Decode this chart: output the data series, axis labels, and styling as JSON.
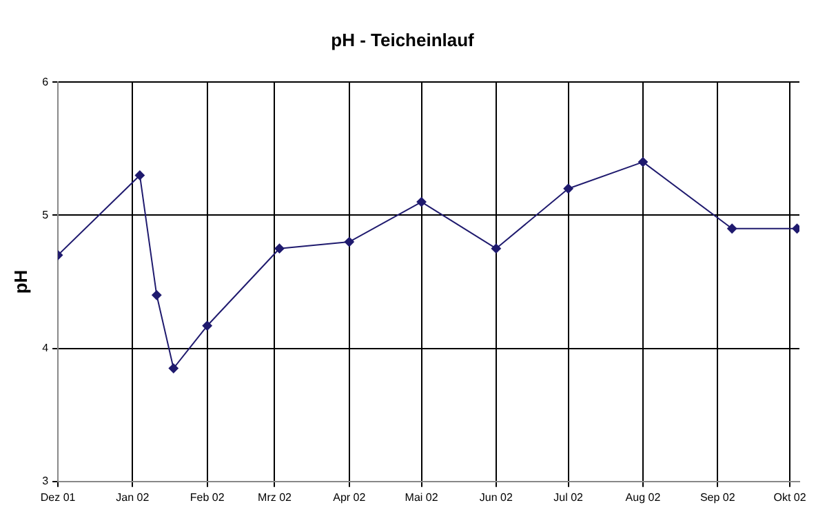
{
  "chart_data": {
    "type": "line",
    "title": "pH - Teicheinlauf",
    "ylabel": "pH",
    "x": [
      "2001-12-01",
      "2002-01-04",
      "2002-01-11",
      "2002-01-18",
      "2002-02-01",
      "2002-03-03",
      "2002-04-01",
      "2002-05-01",
      "2002-06-01",
      "2002-07-01",
      "2002-08-01",
      "2002-09-07",
      "2002-10-04"
    ],
    "series": [
      {
        "color": "#1f1a6e",
        "values": [
          4.7,
          5.3,
          4.4,
          3.85,
          4.17,
          4.75,
          4.8,
          5.1,
          4.75,
          5.2,
          5.4,
          4.9,
          4.9
        ]
      }
    ],
    "xlim": [
      "2001-12-01",
      "2002-10-05"
    ],
    "xticks": [
      {
        "value": "2001-12-01",
        "label": "Dez 01"
      },
      {
        "value": "2002-01-01",
        "label": "Jan 02"
      },
      {
        "value": "2002-02-01",
        "label": "Feb 02"
      },
      {
        "value": "2002-03-01",
        "label": "Mrz 02"
      },
      {
        "value": "2002-04-01",
        "label": "Apr 02"
      },
      {
        "value": "2002-05-01",
        "label": "Mai 02"
      },
      {
        "value": "2002-06-01",
        "label": "Jun 02"
      },
      {
        "value": "2002-07-01",
        "label": "Jul 02"
      },
      {
        "value": "2002-08-01",
        "label": "Aug 02"
      },
      {
        "value": "2002-09-01",
        "label": "Sep 02"
      },
      {
        "value": "2002-10-01",
        "label": "Okt 02"
      }
    ],
    "ylim": [
      3,
      6
    ],
    "yticks": [
      3,
      4,
      5,
      6
    ],
    "grid": true,
    "legend": false,
    "marker": "diamond",
    "line_style": "solid"
  }
}
